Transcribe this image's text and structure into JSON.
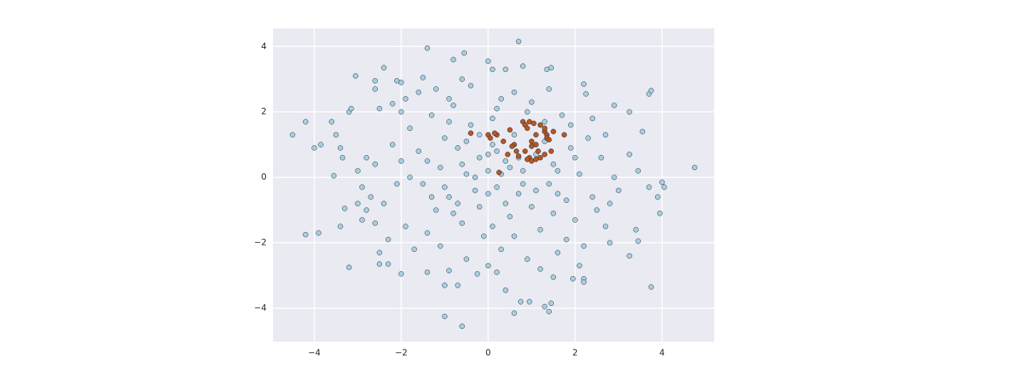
{
  "chart_data": {
    "type": "scatter",
    "xlim": [
      -4.95,
      5.2
    ],
    "ylim": [
      -5.02,
      4.55
    ],
    "xticks": [
      {
        "value": -4,
        "label": "−4"
      },
      {
        "value": -2,
        "label": "−2"
      },
      0,
      2,
      4
    ],
    "yticks": [
      {
        "value": -4,
        "label": "−4"
      },
      {
        "value": -2,
        "label": "−2"
      },
      0,
      2,
      4
    ],
    "grid": true,
    "series": [
      {
        "color": "#a6cee3",
        "x": [
          -4.5,
          -4.2,
          -4.0,
          -3.85,
          -3.6,
          -3.5,
          -3.55,
          -3.35,
          -3.2,
          -3.15,
          -3.05,
          -4.2,
          -3.9,
          -3.4,
          -3.2,
          -3.3,
          -3.0,
          -2.9,
          -2.8,
          -2.6,
          -2.5,
          -2.5,
          -2.3,
          -2.0,
          -2.6,
          -2.6,
          -2.4,
          -2.2,
          -2.1,
          -2.0,
          -1.4,
          -1.5,
          -0.8,
          -0.55,
          -0.6,
          0,
          0.1,
          0.7,
          0.8,
          0.4,
          1.35,
          1.45,
          2.2,
          2.25,
          2.9,
          3.25,
          3.7,
          3.75,
          3.55,
          3.25,
          3.45,
          3.7,
          4.0,
          4.05,
          4.75,
          3.9,
          3.95,
          3.4,
          3.45,
          3.25,
          2.8,
          3.75,
          2.2,
          2.2,
          1.95,
          1.5,
          1.45,
          1.4,
          1.3,
          0.95,
          0.75,
          0.6,
          0.4,
          -0.6,
          -1.0,
          -1.0,
          -0.7,
          -0.9,
          -1.4,
          -0.25,
          0.2,
          0,
          -2.2,
          -2.0,
          -1.8,
          -1.6,
          -1.5,
          -1.3,
          -1.2,
          -1.1,
          -1.0,
          -0.9,
          -0.8,
          -0.7,
          -0.6,
          -0.5,
          -0.4,
          -0.3,
          -0.2,
          -0.1,
          0,
          0.1,
          0.2,
          0.3,
          0.4,
          0.5,
          0.6,
          0.7,
          0.8,
          0.9,
          1.0,
          1.1,
          1.2,
          1.3,
          1.4,
          1.5,
          1.6,
          1.7,
          1.8,
          1.9,
          2.0,
          2.1,
          2.3,
          2.4,
          2.6,
          2.7,
          2.9,
          3.0,
          -2.4,
          -2.6,
          -2.8,
          -2.3,
          -1.9,
          -1.7,
          -1.4,
          -1.1,
          -0.8,
          -0.5,
          -0.2,
          0.1,
          0.3,
          0.6,
          0.9,
          1.2,
          1.5,
          1.8,
          2.2,
          2.5,
          -2.0,
          -1.6,
          -1.2,
          -0.9,
          -0.4,
          0.2,
          0.6,
          1.0,
          1.4,
          1.9,
          2.4,
          2.7,
          -3.0,
          -2.7,
          -2.1,
          -1.8,
          -1.4,
          -1.0,
          -0.6,
          -0.2,
          0.2,
          0.5,
          0.8,
          1.1,
          1.6,
          2.0,
          -1.3,
          -0.7,
          0,
          0.4,
          0,
          0.3,
          -0.3,
          0.7,
          -0.9,
          -1.9,
          -2.5,
          1.3,
          0.1,
          -0.5,
          1.6,
          2.8,
          2.1,
          -2.9,
          -3.4
        ],
        "values": [
          1.3,
          1.7,
          0.9,
          1.0,
          1.7,
          1.3,
          0.05,
          0.6,
          2.0,
          2.1,
          3.1,
          -1.75,
          -1.7,
          -1.5,
          -2.75,
          -0.95,
          -0.8,
          -0.3,
          -1.0,
          -1.4,
          -2.3,
          -2.65,
          -2.65,
          -2.95,
          2.7,
          2.95,
          3.35,
          2.25,
          2.95,
          2.9,
          3.95,
          3.05,
          3.6,
          3.8,
          3.0,
          3.55,
          3.3,
          4.15,
          3.4,
          3.3,
          3.3,
          3.35,
          2.85,
          2.55,
          2.2,
          2.0,
          2.55,
          2.65,
          1.4,
          0.7,
          0.2,
          -0.3,
          -0.15,
          -0.3,
          0.3,
          -0.6,
          -1.1,
          -1.6,
          -1.95,
          -2.4,
          -2.0,
          -3.35,
          -3.1,
          -3.2,
          -3.1,
          -3.05,
          -3.85,
          -4.1,
          -3.95,
          -3.8,
          -3.8,
          -4.15,
          -3.45,
          -4.55,
          -4.25,
          -3.3,
          -3.3,
          -2.85,
          -2.9,
          -2.95,
          -2.9,
          -2.7,
          1.0,
          0.5,
          1.5,
          0.8,
          -0.2,
          1.9,
          -1.0,
          0.3,
          1.2,
          -0.6,
          2.2,
          0.9,
          -1.4,
          0.1,
          1.6,
          -0.4,
          0.6,
          -1.8,
          0.2,
          1.0,
          -0.3,
          2.4,
          0.5,
          -1.2,
          1.3,
          -0.5,
          0.2,
          2.0,
          -0.9,
          0.7,
          -1.6,
          1.1,
          -0.2,
          0.4,
          -2.3,
          1.9,
          -0.7,
          0.9,
          -1.3,
          0.1,
          1.2,
          -0.6,
          0.6,
          -1.5,
          0,
          -0.4,
          -0.8,
          0.4,
          0.6,
          -1.9,
          -1.5,
          -2.2,
          -1.7,
          -2.1,
          -1.1,
          -2.5,
          -0.9,
          -1.5,
          -2.2,
          -1.8,
          -2.5,
          -2.8,
          -1.1,
          -1.9,
          -2.1,
          -1.0,
          2.0,
          2.6,
          2.7,
          2.4,
          2.8,
          2.1,
          2.6,
          2.3,
          2.7,
          1.6,
          1.8,
          1.3,
          0.2,
          -0.6,
          -0.2,
          0,
          0.5,
          -0.3,
          0.4,
          1.3,
          0.8,
          0.3,
          -0.2,
          -0.4,
          0.2,
          0.6,
          -0.6,
          -0.8,
          -0.5,
          -0.8,
          0.7,
          0.1,
          0,
          0.6,
          1.7,
          2.4,
          2.1,
          1.7,
          1.8,
          1.1,
          -0.5,
          -0.8,
          -2.7,
          -1.3,
          0.9
        ]
      },
      {
        "color": "#b15928",
        "x": [
          0.2,
          0,
          -0.4,
          0.05,
          0.15,
          0.35,
          0.5,
          0.6,
          0.65,
          0.45,
          0.7,
          0.8,
          0.85,
          0.9,
          0.95,
          1.05,
          1.1,
          1.0,
          1.0,
          1.1,
          1.15,
          1.2,
          1.3,
          1.35,
          1.35,
          1.4,
          1.5,
          1.75,
          1.3,
          0.95,
          0.9,
          1.0,
          1.1,
          1.2,
          0.25,
          0.55,
          1.3,
          1.45,
          0.85
        ],
        "values": [
          1.3,
          1.3,
          1.35,
          1.2,
          1.35,
          1.1,
          1.45,
          1.0,
          0.8,
          0.7,
          0.65,
          1.7,
          1.6,
          1.5,
          1.7,
          1.65,
          1.3,
          1.1,
          0.95,
          1.0,
          0.8,
          1.6,
          1.4,
          1.3,
          1.2,
          1.15,
          1.4,
          1.3,
          1.5,
          0.6,
          0.55,
          0.5,
          0.55,
          0.6,
          0.15,
          0.95,
          0.7,
          0.8,
          0.8
        ]
      }
    ]
  }
}
